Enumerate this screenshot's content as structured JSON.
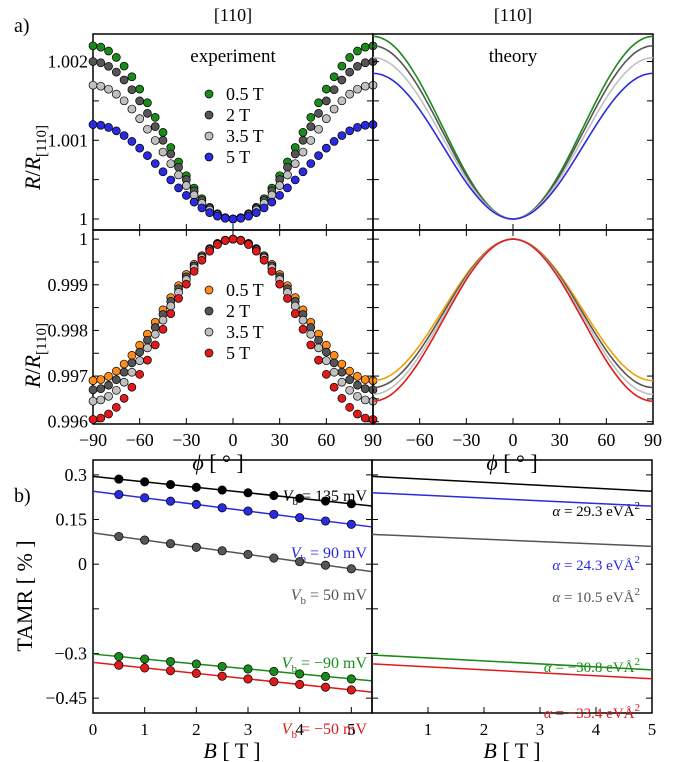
{
  "chart_data": [
    {
      "panel": "a) top left",
      "type": "scatter",
      "panel_label": "a)",
      "top_label": "[110]",
      "title": "experiment",
      "ylabel_main": "R/R",
      "ylabel_sub": "[110]",
      "xlim": [
        -90,
        90
      ],
      "ylim": [
        0.99986,
        1.00235
      ],
      "yticks": [
        "1",
        "1.001",
        "1.002"
      ],
      "legend_placement": "upper-center",
      "series": [
        {
          "name": "0.5 T",
          "color": "#1a8a1a",
          "max": 1.0022,
          "min": 1.0
        },
        {
          "name": "2 T",
          "color": "#555555",
          "max": 1.002,
          "min": 1.0
        },
        {
          "name": "3.5 T",
          "color": "#c0c0c0",
          "max": 1.0017,
          "min": 1.0
        },
        {
          "name": "5 T",
          "color": "#2a2ae0",
          "max": 1.0012,
          "min": 1.0
        }
      ]
    },
    {
      "panel": "a) top right",
      "type": "line",
      "top_label": "[110]",
      "title": "theory",
      "xlim": [
        -90,
        90
      ],
      "ylim": [
        0.99986,
        1.00235
      ],
      "series": [
        {
          "color": "#1a8a1a",
          "max": 1.00232,
          "min": 1.0
        },
        {
          "color": "#555555",
          "max": 1.0022,
          "min": 1.0
        },
        {
          "color": "#c0c0c0",
          "max": 1.00205,
          "min": 1.0
        },
        {
          "color": "#2a2ae0",
          "max": 1.00185,
          "min": 1.0
        }
      ]
    },
    {
      "panel": "a) bottom left",
      "type": "scatter",
      "ylabel_main": "R/R",
      "ylabel_sub": "[110]",
      "xlabel_main": "ϕ",
      "xlabel_unit": "[ ° ]",
      "xlim": [
        -90,
        90
      ],
      "ylim": [
        0.99595,
        1.0002
      ],
      "xticks": [
        "−90",
        "−60",
        "−30",
        "0",
        "30",
        "60",
        "90"
      ],
      "yticks": [
        "0.996",
        "0.997",
        "0.998",
        "0.999",
        "1"
      ],
      "legend_placement": "center-left",
      "series": [
        {
          "name": "0.5 T",
          "color": "#ff8c1a",
          "min": 0.9969,
          "max": 1.0
        },
        {
          "name": "2 T",
          "color": "#555555",
          "min": 0.9967,
          "max": 1.0
        },
        {
          "name": "3.5 T",
          "color": "#c0c0c0",
          "min": 0.99645,
          "max": 1.0
        },
        {
          "name": "5 T",
          "color": "#e01a1a",
          "min": 0.99605,
          "max": 1.0
        }
      ]
    },
    {
      "panel": "a) bottom right",
      "type": "line",
      "xlabel_main": "ϕ",
      "xlabel_unit": "[ ° ]",
      "xlim": [
        -90,
        90
      ],
      "ylim": [
        0.99595,
        1.0002
      ],
      "xticks": [
        "−60",
        "−30",
        "0",
        "30",
        "60",
        "90"
      ],
      "series": [
        {
          "color": "#f0a000",
          "min": 0.9969,
          "max": 1.0
        },
        {
          "color": "#555555",
          "min": 0.99675,
          "max": 1.0
        },
        {
          "color": "#c0c0c0",
          "min": 0.9966,
          "max": 1.0
        },
        {
          "color": "#e01a1a",
          "min": 0.99645,
          "max": 1.0
        }
      ]
    },
    {
      "panel": "b) left",
      "type": "scatter",
      "panel_label": "b)",
      "ylabel": "TAMR [ % ]",
      "xlabel_main": "B",
      "xlabel_unit": "[ T ]",
      "xlim": [
        0,
        5.4
      ],
      "ylim": [
        -0.5,
        0.35
      ],
      "xticks": [
        "0",
        "1",
        "2",
        "3",
        "4",
        "5"
      ],
      "yticks": [
        "−0.45",
        "−0.3",
        "0",
        "0.15",
        "0.3"
      ],
      "x": [
        0.5,
        1.0,
        1.5,
        2.0,
        2.5,
        3.0,
        3.5,
        4.0,
        4.5,
        5.0
      ],
      "series": [
        {
          "label_pre": "V",
          "label_sub": "b",
          "label_val": " = 135 mV",
          "color": "#000000",
          "text_color": "#000000",
          "y0": 0.295,
          "slope": -0.0184
        },
        {
          "label_pre": "V",
          "label_sub": "b",
          "label_val": " = 90 mV",
          "color": "#2a2ae0",
          "text_color": "#2a2ae0",
          "y0": 0.245,
          "slope": -0.0222
        },
        {
          "label_pre": "V",
          "label_sub": "b",
          "label_val": " = 50 mV",
          "color": "#555555",
          "text_color": "#555555",
          "y0": 0.105,
          "slope": -0.0241
        },
        {
          "label_pre": "V",
          "label_sub": "b",
          "label_val": " = −90 mV",
          "color": "#1a8a1a",
          "text_color": "#1a8a1a",
          "y0": -0.302,
          "slope": -0.0167
        },
        {
          "label_pre": "V",
          "label_sub": "b",
          "label_val": " = −50 mV",
          "color": "#e01a1a",
          "text_color": "#e01a1a",
          "y0": -0.33,
          "slope": -0.0185
        }
      ]
    },
    {
      "panel": "b) right",
      "type": "line",
      "xlabel_main": "B",
      "xlabel_unit": "[ T ]",
      "xlim": [
        0,
        5
      ],
      "ylim": [
        -0.5,
        0.35
      ],
      "xticks": [
        "1",
        "2",
        "3",
        "4",
        "5"
      ],
      "series": [
        {
          "label_pre": "α",
          "label_val": " = 29.3 eVÅ",
          "label_sup": "2",
          "color": "#000000",
          "text_color": "#000000",
          "y0": 0.295,
          "y1": 0.245
        },
        {
          "label_pre": "α",
          "label_val": " = 24.3 eVÅ",
          "label_sup": "2",
          "color": "#2a2ae0",
          "text_color": "#2a2ae0",
          "y0": 0.24,
          "y1": 0.195
        },
        {
          "label_pre": "α",
          "label_val": " = 10.5 eVÅ",
          "label_sup": "2",
          "color": "#555555",
          "text_color": "#555555",
          "y0": 0.1,
          "y1": 0.06
        },
        {
          "label_pre": "α",
          "label_val": " = −30.8 eVÅ",
          "label_sup": "2",
          "color": "#1a8a1a",
          "text_color": "#1a8a1a",
          "y0": -0.305,
          "y1": -0.355
        },
        {
          "label_pre": "α",
          "label_val": " = −33.4 eVÅ",
          "label_sup": "2",
          "color": "#e01a1a",
          "text_color": "#e01a1a",
          "y0": -0.335,
          "y1": -0.385
        }
      ]
    }
  ]
}
